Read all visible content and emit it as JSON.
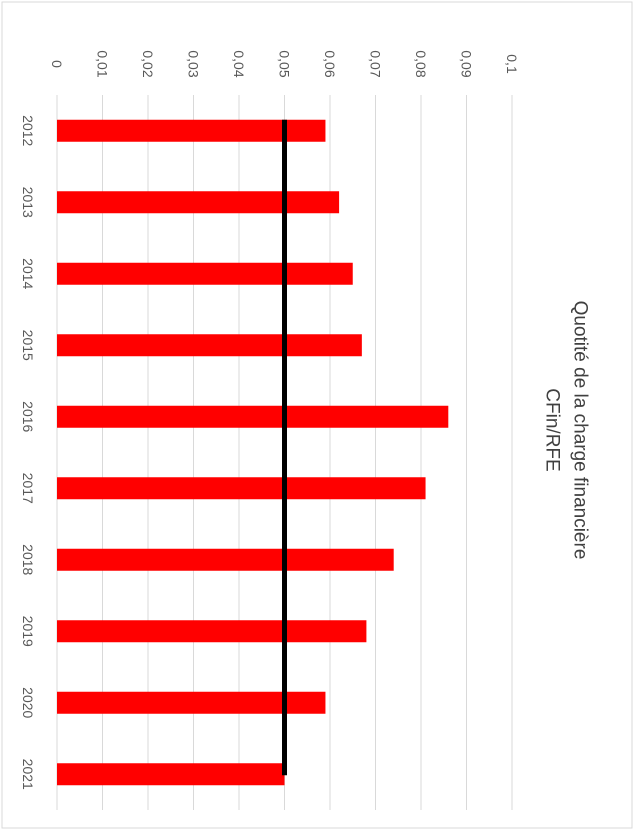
{
  "chart_data": {
    "type": "bar",
    "orientation": "rotated-90-clockwise",
    "title_lines": [
      "Quotité de la charge financière",
      "CFin/RFE"
    ],
    "categories": [
      "2012",
      "2013",
      "2014",
      "2015",
      "2016",
      "2017",
      "2018",
      "2019",
      "2020",
      "2021"
    ],
    "series": [
      {
        "values": [
          0.059,
          0.062,
          0.065,
          0.067,
          0.086,
          0.081,
          0.074,
          0.068,
          0.059,
          0.05
        ],
        "color": "#ff0000"
      }
    ],
    "reference_line": {
      "value": 0.05,
      "color": "#000000"
    },
    "ylim": [
      0,
      0.1
    ],
    "yticks": [
      "0",
      "0,01",
      "0,02",
      "0,03",
      "0,04",
      "0,05",
      "0,06",
      "0,07",
      "0,08",
      "0,09",
      "0,1"
    ],
    "grid": true,
    "legend": "none"
  }
}
